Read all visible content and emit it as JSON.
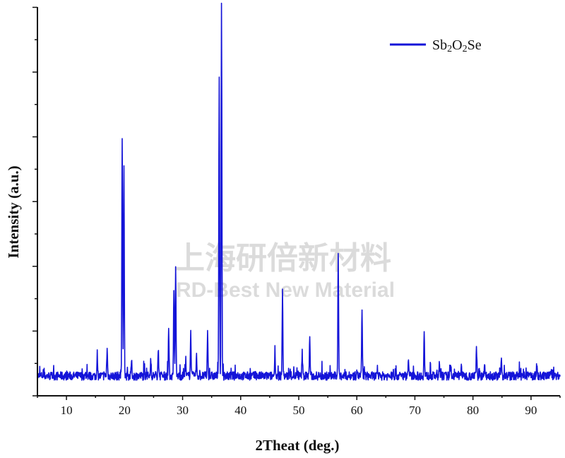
{
  "chart_data": {
    "type": "line",
    "xlabel": "2Theat (deg.)",
    "ylabel": "Intensity (a.u.)",
    "xlim": [
      5,
      95
    ],
    "ylim": [
      0,
      100
    ],
    "xticks": [
      10,
      20,
      30,
      40,
      50,
      60,
      70,
      80,
      90
    ],
    "grid": false,
    "legend": {
      "placement": "top-right",
      "entries": [
        "Sb2O2Se"
      ]
    },
    "series": [
      {
        "name": "Sb2O2Se",
        "color": "#1414d8",
        "baseline": 4,
        "peaks": [
          {
            "x": 15.3,
            "y": 10
          },
          {
            "x": 17.0,
            "y": 11
          },
          {
            "x": 19.6,
            "y": 66
          },
          {
            "x": 19.9,
            "y": 57
          },
          {
            "x": 21.2,
            "y": 8
          },
          {
            "x": 24.5,
            "y": 8
          },
          {
            "x": 25.8,
            "y": 11
          },
          {
            "x": 27.6,
            "y": 16
          },
          {
            "x": 28.5,
            "y": 27
          },
          {
            "x": 28.8,
            "y": 33
          },
          {
            "x": 30.5,
            "y": 7
          },
          {
            "x": 31.4,
            "y": 15
          },
          {
            "x": 32.4,
            "y": 9
          },
          {
            "x": 34.3,
            "y": 15
          },
          {
            "x": 36.3,
            "y": 81
          },
          {
            "x": 36.7,
            "y": 101
          },
          {
            "x": 45.9,
            "y": 11
          },
          {
            "x": 47.2,
            "y": 26
          },
          {
            "x": 50.6,
            "y": 10
          },
          {
            "x": 51.9,
            "y": 14
          },
          {
            "x": 56.8,
            "y": 36
          },
          {
            "x": 60.0,
            "y": 6
          },
          {
            "x": 60.9,
            "y": 21
          },
          {
            "x": 68.9,
            "y": 9
          },
          {
            "x": 71.6,
            "y": 15
          },
          {
            "x": 74.2,
            "y": 7
          },
          {
            "x": 76.2,
            "y": 7
          },
          {
            "x": 78.0,
            "y": 7
          },
          {
            "x": 80.6,
            "y": 11
          },
          {
            "x": 82.0,
            "y": 8
          },
          {
            "x": 84.9,
            "y": 9
          },
          {
            "x": 91.0,
            "y": 7
          },
          {
            "x": 93.5,
            "y": 6
          }
        ]
      }
    ]
  },
  "watermark": {
    "line1": "上海研倍新材料",
    "line2": "RD-Best New Material"
  }
}
